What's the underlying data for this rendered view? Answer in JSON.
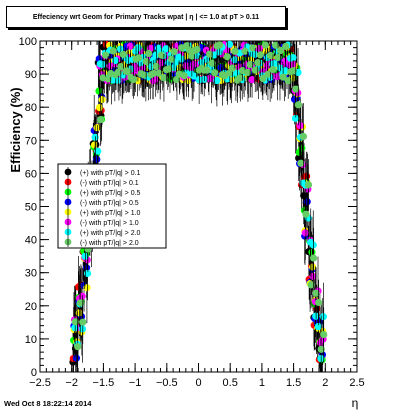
{
  "chart_data": {
    "type": "scatter",
    "title": "Effeciency wrt Geom for Primary Tracks wpat | η | <= 1.0 at pT > 0.11",
    "xlabel": "η",
    "ylabel": "Efficiency (%)",
    "xlim": [
      -2.5,
      2.5
    ],
    "ylim": [
      0,
      100
    ],
    "xticks": [
      "−2.5",
      "−2",
      "−1.5",
      "−1",
      "−0.5",
      "0",
      "0.5",
      "1",
      "1.5",
      "2",
      "2.5"
    ],
    "yticks": [
      "0",
      "10",
      "20",
      "30",
      "40",
      "50",
      "60",
      "70",
      "80",
      "90",
      "100"
    ],
    "legend_position": "left-middle",
    "series": [
      {
        "name": "(+) with pT/|q| > 0.1",
        "color": "#000000"
      },
      {
        "name": "(-) with pT/|q| > 0.1",
        "color": "#ff0000"
      },
      {
        "name": "(+) with pT/|q| > 0.5",
        "color": "#00ff00"
      },
      {
        "name": "(-) with pT/|q| > 0.5",
        "color": "#0000ff"
      },
      {
        "name": "(+) with pT/|q| > 1.0",
        "color": "#ffff00"
      },
      {
        "name": "(-) with pT/|q| > 1.0",
        "color": "#ff00ff"
      },
      {
        "name": "(+) with pT/|q| > 2.0",
        "color": "#00ffff"
      },
      {
        "name": "(-) with pT/|q| > 2.0",
        "color": "#66cc66"
      }
    ],
    "point_generation": {
      "eta_min": -1.98,
      "eta_max": 1.98,
      "step": 0.04,
      "note_values": "efficiency ≈ 10-30 near |η|≈1.9, rising to ~95 by |η|≈1.5, plateau 85–100 in |η|<1.5"
    }
  },
  "footer": "Wed Oct  8 18:22:14 2014"
}
